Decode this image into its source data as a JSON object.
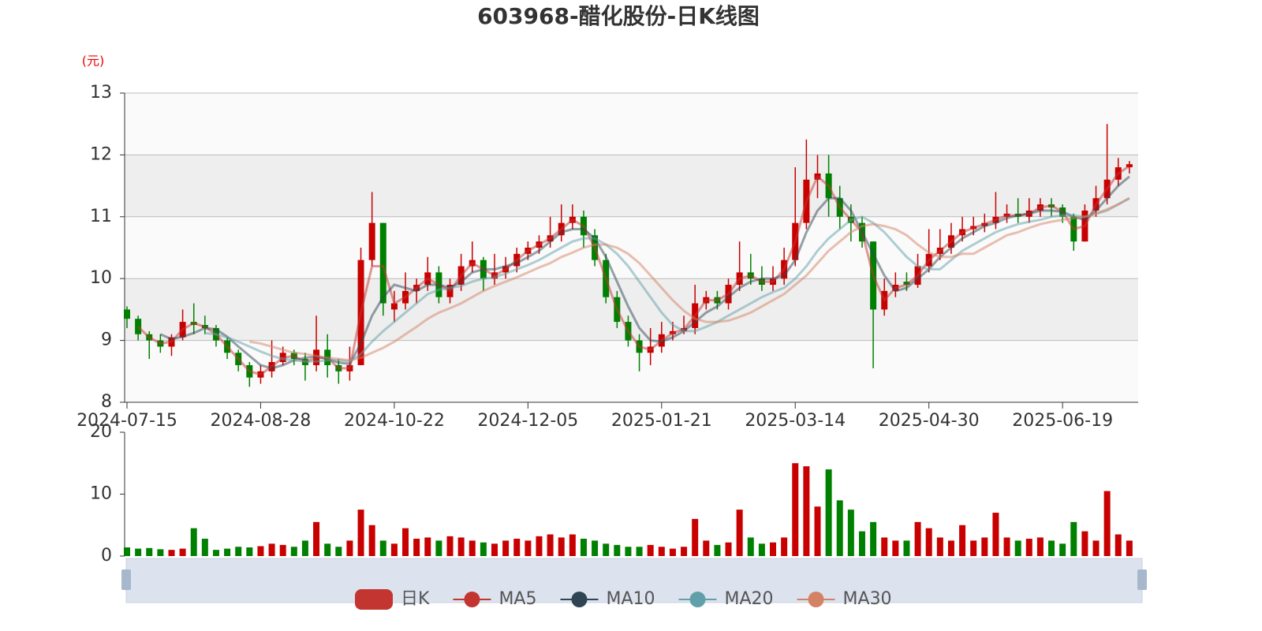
{
  "chart_data": [
    {
      "type": "candlestick",
      "title": "603968-醋化股份-日K线图",
      "y_axis_name": "(元)",
      "up_color": "#c80000",
      "down_color": "#008000",
      "split_area": true,
      "ylim": [
        8,
        13
      ],
      "yticks": [
        8,
        9,
        10,
        11,
        12,
        13
      ],
      "categories": [
        "2024-07-15",
        null,
        null,
        null,
        null,
        null,
        null,
        null,
        null,
        null,
        null,
        null,
        "2024-08-28",
        null,
        null,
        null,
        null,
        null,
        null,
        null,
        null,
        null,
        null,
        null,
        "2024-10-22",
        null,
        null,
        null,
        null,
        null,
        null,
        null,
        null,
        null,
        null,
        null,
        "2024-12-05",
        null,
        null,
        null,
        null,
        null,
        null,
        null,
        null,
        null,
        null,
        null,
        "2025-01-21",
        null,
        null,
        null,
        null,
        null,
        null,
        null,
        null,
        null,
        null,
        null,
        "2025-03-14",
        null,
        null,
        null,
        null,
        null,
        null,
        null,
        null,
        null,
        null,
        null,
        "2025-04-30",
        null,
        null,
        null,
        null,
        null,
        null,
        null,
        null,
        null,
        null,
        null,
        "2025-06-19",
        null,
        null,
        null,
        null,
        null,
        null
      ],
      "series": [
        {
          "name": "日K",
          "color": "#c23531",
          "values": [
            [
              9.5,
              9.35,
              9.2,
              9.55
            ],
            [
              9.35,
              9.1,
              9.0,
              9.4
            ],
            [
              9.1,
              9.0,
              8.7,
              9.15
            ],
            [
              9.0,
              8.9,
              8.8,
              9.1
            ],
            [
              8.9,
              9.05,
              8.75,
              9.1
            ],
            [
              9.05,
              9.3,
              9.0,
              9.5
            ],
            [
              9.3,
              9.25,
              9.1,
              9.6
            ],
            [
              9.25,
              9.2,
              9.1,
              9.4
            ],
            [
              9.2,
              9.0,
              8.9,
              9.25
            ],
            [
              9.0,
              8.8,
              8.7,
              9.05
            ],
            [
              8.8,
              8.6,
              8.5,
              8.85
            ],
            [
              8.6,
              8.4,
              8.25,
              8.65
            ],
            [
              8.4,
              8.5,
              8.3,
              8.6
            ],
            [
              8.5,
              8.65,
              8.4,
              9.0
            ],
            [
              8.65,
              8.8,
              8.6,
              8.9
            ],
            [
              8.8,
              8.7,
              8.6,
              8.85
            ],
            [
              8.7,
              8.6,
              8.35,
              8.8
            ],
            [
              8.6,
              8.85,
              8.5,
              9.4
            ],
            [
              8.85,
              8.6,
              8.4,
              9.1
            ],
            [
              8.6,
              8.5,
              8.3,
              8.7
            ],
            [
              8.5,
              8.6,
              8.35,
              8.9
            ],
            [
              8.6,
              10.3,
              8.6,
              10.5
            ],
            [
              10.3,
              10.9,
              10.2,
              11.4
            ],
            [
              10.9,
              9.6,
              9.4,
              10.9
            ],
            [
              9.5,
              9.6,
              9.3,
              9.8
            ],
            [
              9.6,
              9.8,
              9.5,
              10.1
            ],
            [
              9.8,
              9.9,
              9.6,
              10.0
            ],
            [
              9.9,
              10.1,
              9.8,
              10.35
            ],
            [
              10.1,
              9.7,
              9.6,
              10.2
            ],
            [
              9.7,
              9.9,
              9.6,
              10.0
            ],
            [
              9.9,
              10.2,
              9.8,
              10.4
            ],
            [
              10.2,
              10.3,
              10.1,
              10.6
            ],
            [
              10.3,
              10.0,
              9.8,
              10.35
            ],
            [
              10.0,
              10.1,
              9.9,
              10.4
            ],
            [
              10.1,
              10.2,
              10.0,
              10.35
            ],
            [
              10.2,
              10.4,
              10.1,
              10.5
            ],
            [
              10.4,
              10.5,
              10.3,
              10.6
            ],
            [
              10.5,
              10.6,
              10.4,
              10.7
            ],
            [
              10.6,
              10.7,
              10.5,
              11.0
            ],
            [
              10.7,
              10.9,
              10.6,
              11.2
            ],
            [
              10.9,
              11.0,
              10.8,
              11.2
            ],
            [
              11.0,
              10.7,
              10.5,
              11.1
            ],
            [
              10.7,
              10.3,
              10.2,
              10.8
            ],
            [
              10.3,
              9.7,
              9.6,
              10.4
            ],
            [
              9.7,
              9.3,
              9.2,
              9.8
            ],
            [
              9.3,
              9.0,
              8.9,
              9.4
            ],
            [
              9.0,
              8.8,
              8.5,
              9.1
            ],
            [
              8.8,
              8.9,
              8.6,
              9.2
            ],
            [
              8.9,
              9.1,
              8.8,
              9.3
            ],
            [
              9.1,
              9.15,
              9.0,
              9.3
            ],
            [
              9.15,
              9.2,
              9.1,
              9.4
            ],
            [
              9.2,
              9.6,
              9.1,
              9.9
            ],
            [
              9.6,
              9.7,
              9.5,
              9.8
            ],
            [
              9.7,
              9.6,
              9.5,
              9.8
            ],
            [
              9.6,
              9.9,
              9.5,
              10.0
            ],
            [
              9.9,
              10.1,
              9.8,
              10.6
            ],
            [
              10.1,
              10.0,
              9.9,
              10.4
            ],
            [
              10.0,
              9.9,
              9.8,
              10.2
            ],
            [
              9.9,
              10.0,
              9.8,
              10.2
            ],
            [
              10.0,
              10.3,
              9.9,
              10.5
            ],
            [
              10.3,
              10.9,
              10.2,
              11.8
            ],
            [
              10.9,
              11.6,
              10.8,
              12.25
            ],
            [
              11.6,
              11.7,
              11.3,
              12.0
            ],
            [
              11.7,
              11.3,
              11.0,
              12.0
            ],
            [
              11.3,
              11.0,
              10.8,
              11.5
            ],
            [
              11.0,
              10.9,
              10.6,
              11.2
            ],
            [
              10.9,
              10.6,
              10.5,
              11.0
            ],
            [
              10.6,
              9.5,
              8.55,
              10.6
            ],
            [
              9.5,
              9.8,
              9.4,
              10.0
            ],
            [
              9.8,
              9.9,
              9.7,
              10.1
            ],
            [
              9.95,
              9.9,
              9.8,
              10.1
            ],
            [
              9.9,
              10.2,
              9.85,
              10.4
            ],
            [
              10.2,
              10.4,
              10.1,
              10.8
            ],
            [
              10.4,
              10.5,
              10.3,
              10.8
            ],
            [
              10.5,
              10.7,
              10.4,
              10.9
            ],
            [
              10.7,
              10.8,
              10.6,
              11.0
            ],
            [
              10.8,
              10.85,
              10.7,
              11.0
            ],
            [
              10.85,
              10.9,
              10.75,
              11.05
            ],
            [
              10.9,
              11.0,
              10.8,
              11.4
            ],
            [
              11.0,
              11.05,
              10.9,
              11.2
            ],
            [
              11.05,
              11.0,
              10.9,
              11.3
            ],
            [
              11.0,
              11.1,
              10.9,
              11.3
            ],
            [
              11.1,
              11.2,
              11.0,
              11.3
            ],
            [
              11.2,
              11.15,
              11.0,
              11.3
            ],
            [
              11.15,
              11.0,
              10.9,
              11.2
            ],
            [
              11.0,
              10.6,
              10.45,
              11.05
            ],
            [
              10.6,
              11.1,
              10.6,
              11.2
            ],
            [
              11.1,
              11.3,
              11.0,
              11.5
            ],
            [
              11.3,
              11.6,
              11.2,
              12.5
            ],
            [
              11.6,
              11.8,
              11.5,
              11.95
            ],
            [
              11.8,
              11.85,
              11.7,
              11.9
            ]
          ]
        },
        {
          "name": "MA5",
          "color": "#c23531",
          "values": [
            null,
            9.22,
            9.05,
            8.95,
            8.98,
            9.18,
            9.28,
            9.22,
            9.1,
            8.9,
            8.7,
            8.5,
            8.45,
            8.58,
            8.72,
            8.75,
            8.65,
            8.72,
            8.72,
            8.55,
            8.55,
            9.45,
            10.2,
            10.2,
            9.6,
            9.7,
            9.85,
            10.0,
            9.9,
            9.8,
            10.05,
            10.25,
            10.15,
            10.05,
            10.15,
            10.3,
            10.45,
            10.55,
            10.65,
            10.8,
            10.95,
            10.85,
            10.5,
            10.0,
            9.5,
            9.15,
            8.9,
            8.85,
            9.0,
            9.12,
            9.18,
            9.4,
            9.65,
            9.65,
            9.75,
            10.0,
            10.05,
            9.95,
            9.95,
            10.15,
            10.6,
            11.25,
            11.65,
            11.5,
            11.15,
            10.95,
            10.75,
            10.05,
            9.65,
            9.85,
            9.9,
            10.05,
            10.3,
            10.45,
            10.6,
            10.75,
            10.82,
            10.88,
            10.95,
            11.02,
            11.02,
            11.05,
            11.15,
            11.18,
            11.08,
            10.8,
            10.85,
            11.2,
            11.45,
            11.7,
            11.82
          ]
        },
        {
          "name": "MA10",
          "color": "#2f4554",
          "values": [
            null,
            null,
            null,
            9.1,
            9.02,
            9.06,
            9.12,
            9.2,
            9.18,
            9.06,
            8.9,
            8.75,
            8.6,
            8.55,
            8.6,
            8.68,
            8.72,
            8.74,
            8.7,
            8.64,
            8.62,
            8.95,
            9.4,
            9.7,
            9.9,
            9.85,
            9.8,
            9.9,
            9.9,
            9.85,
            9.95,
            10.1,
            10.15,
            10.15,
            10.2,
            10.25,
            10.35,
            10.45,
            10.6,
            10.75,
            10.8,
            10.8,
            10.65,
            10.35,
            9.95,
            9.55,
            9.2,
            9.0,
            8.98,
            9.05,
            9.15,
            9.3,
            9.45,
            9.55,
            9.7,
            9.85,
            9.95,
            10.0,
            10.0,
            10.05,
            10.3,
            10.75,
            11.1,
            11.3,
            11.3,
            11.1,
            10.75,
            10.4,
            10.05,
            9.8,
            9.85,
            10.0,
            10.15,
            10.35,
            10.5,
            10.65,
            10.75,
            10.85,
            10.9,
            10.98,
            11.02,
            11.05,
            11.1,
            11.1,
            11.08,
            11.0,
            10.95,
            11.1,
            11.3,
            11.5,
            11.65
          ]
        },
        {
          "name": "MA20",
          "color": "#61a0a8",
          "values": [
            null,
            null,
            null,
            null,
            null,
            null,
            null,
            9.12,
            9.1,
            9.05,
            8.98,
            8.9,
            8.82,
            8.75,
            8.7,
            8.68,
            8.66,
            8.66,
            8.68,
            8.68,
            8.66,
            8.78,
            8.98,
            9.15,
            9.3,
            9.45,
            9.6,
            9.75,
            9.82,
            9.85,
            9.88,
            9.95,
            10.0,
            10.02,
            10.08,
            10.15,
            10.22,
            10.3,
            10.4,
            10.5,
            10.6,
            10.65,
            10.65,
            10.55,
            10.4,
            10.2,
            9.95,
            9.7,
            9.45,
            9.25,
            9.15,
            9.15,
            9.22,
            9.3,
            9.4,
            9.5,
            9.6,
            9.7,
            9.78,
            9.85,
            10.0,
            10.2,
            10.45,
            10.65,
            10.8,
            10.95,
            11.0,
            10.9,
            10.75,
            10.55,
            10.35,
            10.2,
            10.15,
            10.15,
            10.3,
            10.45,
            10.55,
            10.65,
            10.75,
            10.82,
            10.88,
            10.92,
            10.95,
            11.0,
            11.02,
            11.02,
            11.0,
            11.05,
            11.1,
            11.2,
            11.3
          ]
        },
        {
          "name": "MA30",
          "color": "#d48265",
          "values": [
            null,
            null,
            null,
            null,
            null,
            null,
            null,
            null,
            null,
            null,
            null,
            8.98,
            8.95,
            8.9,
            8.85,
            8.8,
            8.78,
            8.75,
            8.72,
            8.7,
            8.68,
            8.72,
            8.8,
            8.88,
            8.98,
            9.1,
            9.22,
            9.35,
            9.45,
            9.52,
            9.6,
            9.7,
            9.8,
            9.88,
            9.95,
            10.02,
            10.1,
            10.18,
            10.25,
            10.35,
            10.42,
            10.5,
            10.55,
            10.55,
            10.5,
            10.4,
            10.25,
            10.05,
            9.85,
            9.65,
            9.48,
            9.35,
            9.3,
            9.3,
            9.32,
            9.38,
            9.45,
            9.55,
            9.65,
            9.75,
            9.9,
            10.05,
            10.25,
            10.45,
            10.6,
            10.75,
            10.85,
            10.88,
            10.85,
            10.8,
            10.7,
            10.55,
            10.42,
            10.35,
            10.35,
            10.4,
            10.4,
            10.5,
            10.6,
            10.7,
            10.75,
            10.82,
            10.88,
            10.92,
            10.95,
            10.98,
            11.0,
            11.05,
            11.12,
            11.2,
            11.3
          ]
        }
      ]
    },
    {
      "type": "bar",
      "ylim": [
        0,
        20
      ],
      "yticks": [
        0,
        10,
        20
      ],
      "values": [
        1.4,
        1.2,
        1.3,
        1.1,
        1.0,
        1.2,
        4.5,
        2.8,
        1.0,
        1.2,
        1.5,
        1.4,
        1.6,
        2.0,
        1.8,
        1.5,
        2.5,
        5.5,
        2.0,
        1.5,
        2.5,
        7.5,
        5.0,
        2.5,
        2.0,
        4.5,
        2.8,
        3.0,
        2.5,
        3.2,
        3.0,
        2.5,
        2.2,
        2.0,
        2.5,
        2.8,
        2.5,
        3.2,
        3.5,
        3.0,
        3.5,
        2.8,
        2.5,
        2.0,
        1.8,
        1.5,
        1.5,
        1.8,
        1.5,
        1.2,
        1.5,
        6.0,
        2.5,
        1.8,
        2.2,
        7.5,
        3.0,
        2.0,
        2.2,
        3.0,
        15.0,
        14.5,
        8.0,
        14.0,
        9.0,
        7.5,
        4.0,
        5.5,
        3.0,
        2.5,
        2.5,
        5.5,
        4.5,
        3.0,
        2.5,
        5.0,
        2.5,
        3.0,
        7.0,
        3.0,
        2.5,
        2.8,
        3.0,
        2.5,
        2.0,
        5.5,
        4.0,
        2.5,
        10.5,
        3.5,
        2.5
      ]
    }
  ]
}
